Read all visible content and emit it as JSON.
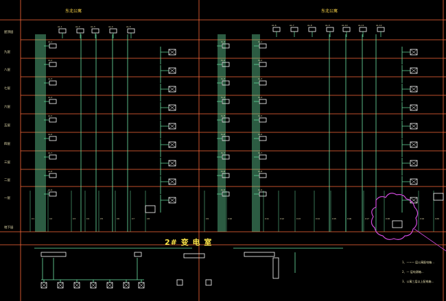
{
  "drawing": {
    "title": "2# 变 电 室",
    "sections": [
      "东北公寓",
      "东北公寓"
    ],
    "floors": [
      "屋顶层",
      "九层",
      "八层",
      "七层",
      "六层",
      "五层",
      "四层",
      "三层",
      "二层",
      "一层",
      "地下层"
    ],
    "notes": [
      "1、一~一 层公寓配电箱...",
      "2、一 层电源箱...",
      "3、公寓三层以上配电箱..."
    ]
  },
  "colors": {
    "background": "#000000",
    "grid_lines": "#ff6a3a",
    "feeders": "#6ee8a8",
    "boxes": "#ffffff",
    "text": "#e8e0b0",
    "title": "#ffe84a",
    "revision_cloud": "#d04adc"
  }
}
